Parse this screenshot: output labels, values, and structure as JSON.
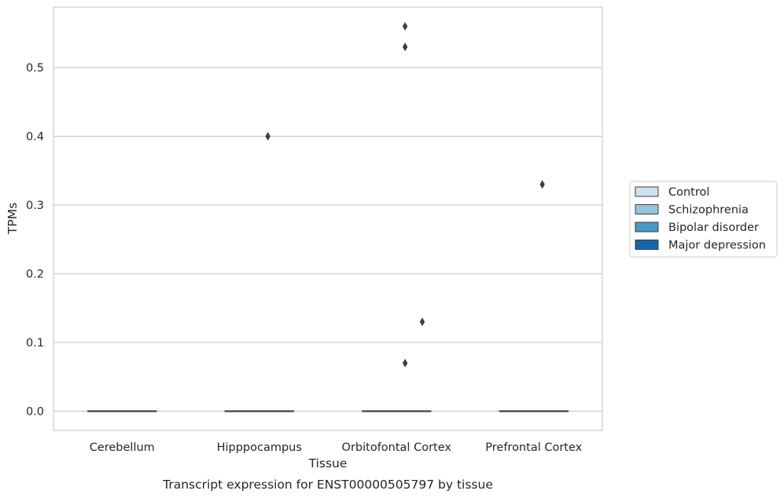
{
  "chart_data": {
    "type": "box",
    "caption": "Transcript expression for ENST00000505797 by tissue",
    "xlabel": "Tissue",
    "ylabel": "TPMs",
    "categories": [
      "Cerebellum",
      "Hipppocampus",
      "Orbitofontal Cortex",
      "Prefrontal Cortex"
    ],
    "ylim": [
      -0.028,
      0.588
    ],
    "yticks": [
      0.0,
      0.1,
      0.2,
      0.3,
      0.4,
      0.5
    ],
    "ytick_labels": [
      "0.0",
      "0.1",
      "0.2",
      "0.3",
      "0.4",
      "0.5"
    ],
    "grid": true,
    "legend_position": "right, outside",
    "series": [
      {
        "name": "Control",
        "color": "#d0e1f2",
        "boxes": [
          {
            "category": "Cerebellum",
            "median": 0,
            "q1": 0,
            "q3": 0,
            "whisker_low": 0,
            "whisker_high": 0,
            "outliers": []
          },
          {
            "category": "Hipppocampus",
            "median": 0,
            "q1": 0,
            "q3": 0,
            "whisker_low": 0,
            "whisker_high": 0,
            "outliers": []
          },
          {
            "category": "Orbitofontal Cortex",
            "median": 0,
            "q1": 0,
            "q3": 0,
            "whisker_low": 0,
            "whisker_high": 0,
            "outliers": []
          },
          {
            "category": "Prefrontal Cortex",
            "median": 0,
            "q1": 0,
            "q3": 0,
            "whisker_low": 0,
            "whisker_high": 0,
            "outliers": []
          }
        ]
      },
      {
        "name": "Schizophrenia",
        "color": "#94c4df",
        "boxes": [
          {
            "category": "Cerebellum",
            "median": 0,
            "q1": 0,
            "q3": 0,
            "whisker_low": 0,
            "whisker_high": 0,
            "outliers": []
          },
          {
            "category": "Hipppocampus",
            "median": 0,
            "q1": 0,
            "q3": 0,
            "whisker_low": 0,
            "whisker_high": 0,
            "outliers": []
          },
          {
            "category": "Orbitofontal Cortex",
            "median": 0,
            "q1": 0,
            "q3": 0,
            "whisker_low": 0,
            "whisker_high": 0,
            "outliers": []
          },
          {
            "category": "Prefrontal Cortex",
            "median": 0,
            "q1": 0,
            "q3": 0,
            "whisker_low": 0,
            "whisker_high": 0,
            "outliers": []
          }
        ]
      },
      {
        "name": "Bipolar disorder",
        "color": "#4a98c9",
        "boxes": [
          {
            "category": "Cerebellum",
            "median": 0,
            "q1": 0,
            "q3": 0,
            "whisker_low": 0,
            "whisker_high": 0,
            "outliers": []
          },
          {
            "category": "Hipppocampus",
            "median": 0,
            "q1": 0,
            "q3": 0,
            "whisker_low": 0,
            "whisker_high": 0,
            "outliers": [
              0.4
            ]
          },
          {
            "category": "Orbitofontal Cortex",
            "median": 0,
            "q1": 0,
            "q3": 0,
            "whisker_low": 0,
            "whisker_high": 0,
            "outliers": [
              0.56,
              0.53,
              0.07
            ]
          },
          {
            "category": "Prefrontal Cortex",
            "median": 0,
            "q1": 0,
            "q3": 0,
            "whisker_low": 0,
            "whisker_high": 0,
            "outliers": [
              0.33
            ]
          }
        ]
      },
      {
        "name": "Major depression",
        "color": "#1764ab",
        "boxes": [
          {
            "category": "Cerebellum",
            "median": 0,
            "q1": 0,
            "q3": 0,
            "whisker_low": 0,
            "whisker_high": 0,
            "outliers": []
          },
          {
            "category": "Hipppocampus",
            "median": 0,
            "q1": 0,
            "q3": 0,
            "whisker_low": 0,
            "whisker_high": 0,
            "outliers": []
          },
          {
            "category": "Orbitofontal Cortex",
            "median": 0,
            "q1": 0,
            "q3": 0,
            "whisker_low": 0,
            "whisker_high": 0,
            "outliers": [
              0.13
            ]
          },
          {
            "category": "Prefrontal Cortex",
            "median": 0,
            "q1": 0,
            "q3": 0,
            "whisker_low": 0,
            "whisker_high": 0,
            "outliers": []
          }
        ]
      }
    ],
    "colors": {
      "grid": "#cccccc",
      "axes_edge": "#cccccc",
      "box_edge": "#3d3d3d",
      "outlier": "#3d3d3d"
    }
  }
}
